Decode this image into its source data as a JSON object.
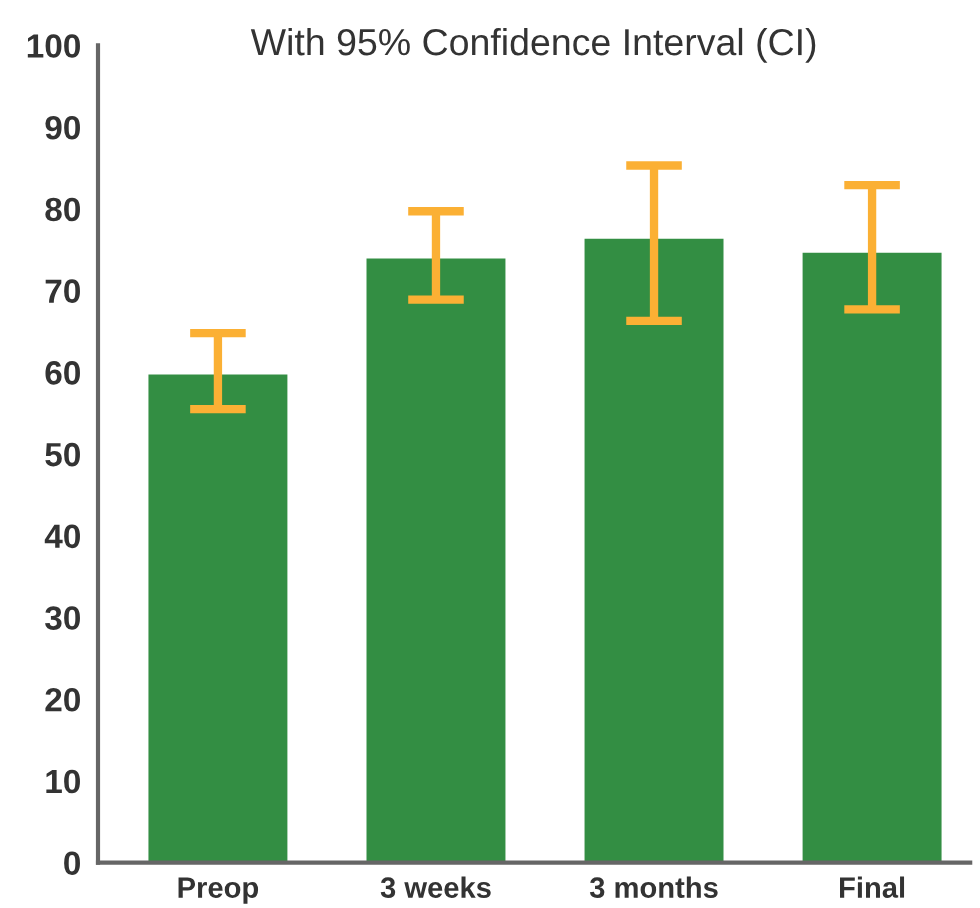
{
  "chart_data": {
    "type": "bar",
    "subtitle": "With 95% Confidence Interval (CI)",
    "categories": [
      "Preop",
      "3 weeks",
      "3 months",
      "Final"
    ],
    "values": [
      59.9,
      74.1,
      76.5,
      74.8
    ],
    "errors": [
      [
        55.5,
        64.8
      ],
      [
        68.9,
        79.7
      ],
      [
        66.3,
        85.3
      ],
      [
        67.7,
        82.9
      ]
    ],
    "color": "#338e43",
    "ylim": [
      0,
      100
    ],
    "yticks": [
      0,
      10,
      20,
      30,
      40,
      50,
      60,
      70,
      80,
      90,
      100
    ],
    "grid": false
  }
}
